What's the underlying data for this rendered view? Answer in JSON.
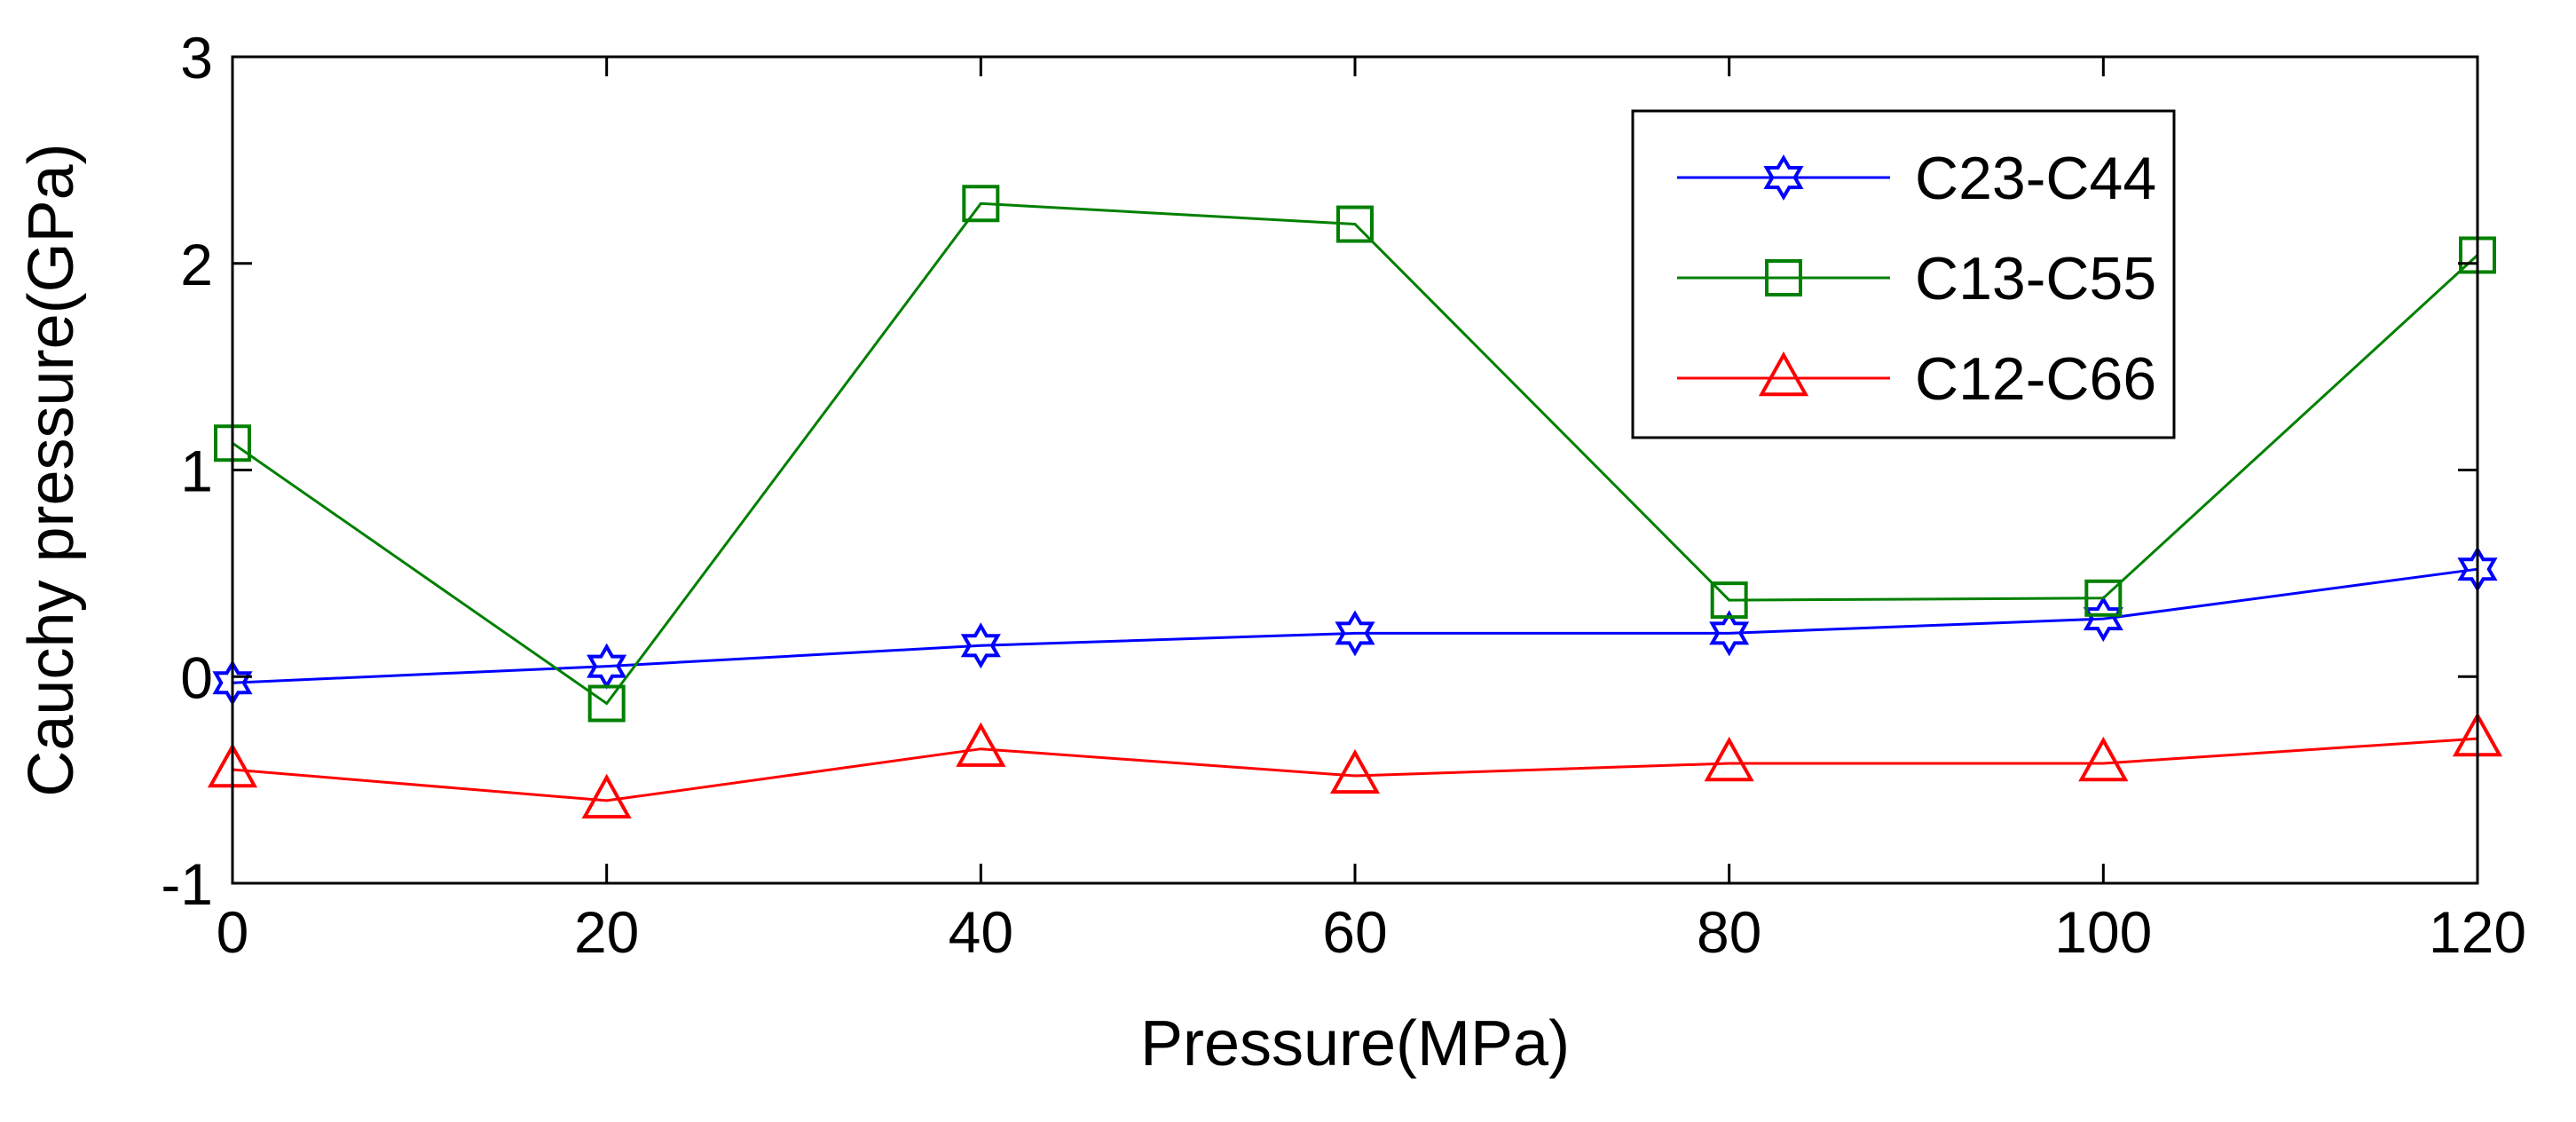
{
  "chart_data": {
    "type": "line",
    "title": "",
    "xlabel": "Pressure(MPa)",
    "ylabel": "Cauchy pressure(GPa)",
    "xlim": [
      0,
      120
    ],
    "ylim": [
      -1,
      3
    ],
    "xticks": [
      0,
      20,
      40,
      60,
      80,
      100,
      120
    ],
    "yticks": [
      -1,
      0,
      1,
      2,
      3
    ],
    "xtick_labels": [
      "0",
      "20",
      "40",
      "60",
      "80",
      "100",
      "120"
    ],
    "ytick_labels": [
      "-1",
      "0",
      "1",
      "2",
      "3"
    ],
    "grid": false,
    "legend_position": "top-right",
    "x": [
      0,
      20,
      40,
      60,
      80,
      100,
      120
    ],
    "series": [
      {
        "name": "C23-C44",
        "color": "#0000ff",
        "marker": "hexagram",
        "values": [
          -0.03,
          0.05,
          0.15,
          0.21,
          0.21,
          0.28,
          0.52
        ]
      },
      {
        "name": "C13-C55",
        "color": "#008000",
        "marker": "square",
        "values": [
          1.13,
          -0.13,
          2.29,
          2.19,
          0.37,
          0.38,
          2.04
        ]
      },
      {
        "name": "C12-C66",
        "color": "#ff0000",
        "marker": "triangle",
        "values": [
          -0.45,
          -0.6,
          -0.35,
          -0.48,
          -0.42,
          -0.42,
          -0.3
        ]
      }
    ]
  }
}
